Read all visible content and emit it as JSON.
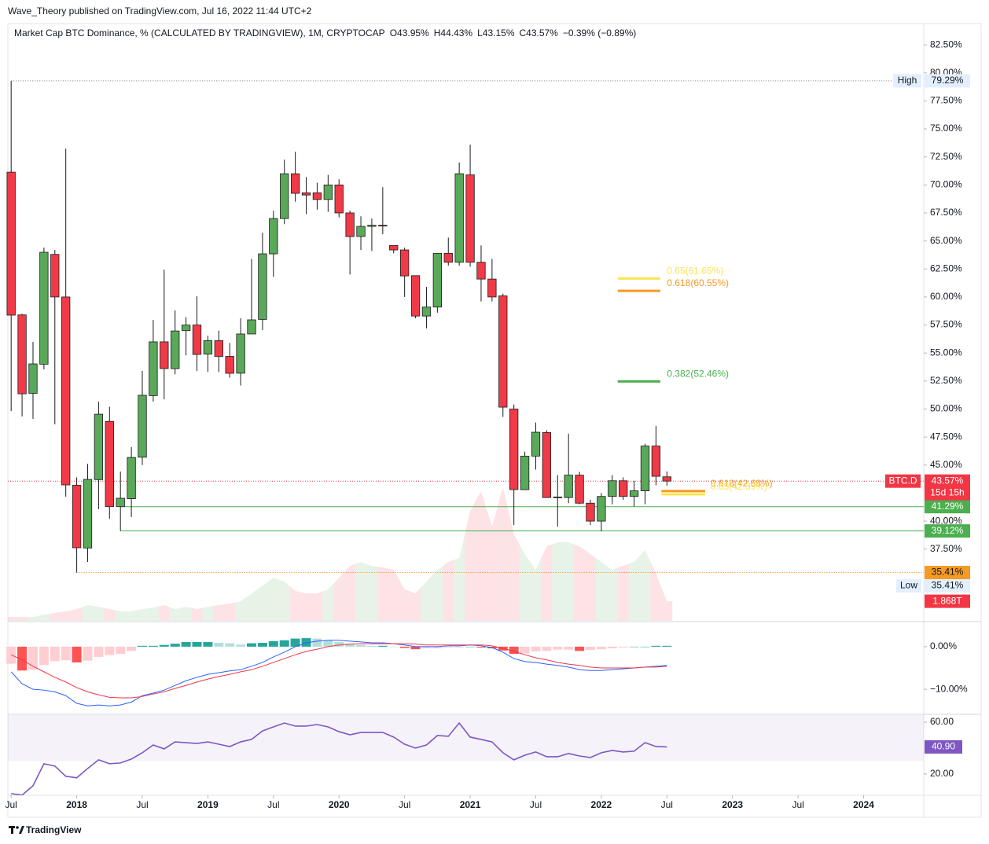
{
  "header": {
    "publisher": "Wave_Theory published on TradingView.com, Jul 16, 2022 11:44 UTC+2",
    "brand": "TradingView"
  },
  "chart_data": {
    "type": "candlestick",
    "title": "Market Cap BTC Dominance, % (CALCULATED BY TRADINGVIEW), 1M, CRYPTOCAP",
    "ohlc_text": [
      "O43.95%",
      "H44.43%",
      "L43.15%",
      "C43.57%",
      "−0.39% (−0.89%)"
    ],
    "open": [
      71.14,
      58.4,
      51.4,
      54.0,
      63.8,
      60.0,
      43.2,
      37.6,
      43.7,
      48.9,
      41.29,
      42.0,
      45.7,
      51.2,
      56.0,
      53.6,
      57.0,
      57.5,
      54.9,
      56.1,
      54.7,
      53.2,
      56.7,
      58.0,
      63.85,
      67.0,
      71.0,
      69.3,
      69.3,
      68.7,
      70.0,
      67.5,
      65.4,
      66.3,
      66.4,
      64.6,
      64.2,
      61.9,
      58.3,
      59.1,
      63.9,
      63.1,
      70.9,
      63.1,
      61.6,
      60.1,
      50.0,
      42.8,
      45.8,
      47.9,
      42.1,
      42.1,
      44.1,
      41.6,
      40.0,
      42.2,
      43.6,
      42.2,
      42.7,
      46.7,
      43.95
    ],
    "high": [
      79.29,
      58.5,
      55.99,
      64.4,
      64.2,
      73.24,
      43.9,
      45.1,
      50.66,
      50.2,
      44.42,
      46.6,
      53.4,
      57.96,
      62.44,
      58.8,
      58.2,
      60.06,
      56.55,
      57.0,
      55.9,
      58.1,
      63.4,
      65.74,
      67.7,
      72.26,
      72.96,
      70.7,
      70.2,
      70.9,
      70.5,
      67.7,
      67.2,
      67.0,
      69.8,
      64.6,
      64.4,
      61.9,
      60.9,
      63.9,
      65.3,
      72.0,
      73.6,
      64.6,
      63.4,
      60.3,
      50.4,
      46.2,
      48.8,
      48.1,
      44.1,
      47.8,
      44.4,
      41.9,
      42.5,
      44.1,
      43.9,
      43.6,
      46.9,
      48.5,
      44.43
    ],
    "low": [
      49.82,
      49.33,
      49.12,
      53.54,
      48.63,
      42.18,
      35.41,
      36.36,
      41.06,
      40.2,
      39.12,
      40.36,
      45.0,
      50.66,
      50.87,
      53.1,
      54.8,
      53.4,
      53.3,
      53.3,
      52.8,
      52.1,
      56.7,
      57.05,
      61.8,
      66.5,
      68.5,
      67.4,
      67.8,
      67.6,
      67.1,
      62.0,
      64.2,
      64.1,
      65.6,
      63.9,
      60.0,
      58.1,
      57.2,
      58.6,
      62.8,
      62.8,
      62.7,
      59.6,
      59.6,
      49.3,
      39.65,
      42.8,
      44.6,
      42.1,
      39.5,
      41.6,
      41.5,
      39.65,
      39.1,
      41.5,
      41.9,
      41.3,
      41.5,
      43.2,
      43.15
    ],
    "close": [
      58.38,
      51.36,
      54.03,
      63.99,
      60.0,
      43.23,
      37.62,
      43.72,
      49.54,
      41.29,
      42.04,
      45.68,
      51.23,
      56.0,
      53.61,
      56.97,
      57.5,
      54.87,
      56.1,
      54.7,
      53.19,
      56.7,
      57.96,
      63.85,
      67.0,
      71.0,
      69.25,
      69.1,
      68.7,
      70.0,
      67.5,
      65.39,
      66.3,
      66.4,
      66.35,
      64.2,
      61.88,
      58.3,
      59.1,
      63.9,
      63.1,
      71.0,
      63.1,
      61.6,
      60.0,
      50.17,
      42.81,
      45.8,
      47.93,
      42.1,
      42.15,
      44.1,
      41.6,
      40.0,
      42.2,
      43.6,
      42.2,
      42.7,
      46.7,
      44.0,
      43.57
    ],
    "up_color": "#5aa85a",
    "down_color": "#f03a47",
    "xlim": [
      -0.3,
      83.5
    ],
    "xticks": [
      {
        "value": 0,
        "label": "Jul"
      },
      {
        "value": 6,
        "label": "2018"
      },
      {
        "value": 12,
        "label": "Jul"
      },
      {
        "value": 18,
        "label": "2019"
      },
      {
        "value": 24,
        "label": "Jul"
      },
      {
        "value": 30,
        "label": "2020"
      },
      {
        "value": 36,
        "label": "Jul"
      },
      {
        "value": 42,
        "label": "2021"
      },
      {
        "value": 48,
        "label": "Jul"
      },
      {
        "value": 54,
        "label": "2022"
      },
      {
        "value": 60,
        "label": "Jul"
      },
      {
        "value": 66,
        "label": "2023"
      },
      {
        "value": 72,
        "label": "Jul"
      },
      {
        "value": 78,
        "label": "2024"
      }
    ],
    "ylim": [
      31.1,
      84.4
    ],
    "yticks": [
      {
        "value": 82.5,
        "label": "82.50%"
      },
      {
        "value": 80,
        "label": "80.00%"
      },
      {
        "value": 77.5,
        "label": "77.50%"
      },
      {
        "value": 75,
        "label": "75.00%"
      },
      {
        "value": 72.5,
        "label": "72.50%"
      },
      {
        "value": 70,
        "label": "70.00%"
      },
      {
        "value": 67.5,
        "label": "67.50%"
      },
      {
        "value": 65,
        "label": "65.00%"
      },
      {
        "value": 62.5,
        "label": "62.50%"
      },
      {
        "value": 60,
        "label": "60.00%"
      },
      {
        "value": 57.5,
        "label": "57.50%"
      },
      {
        "value": 55,
        "label": "55.00%"
      },
      {
        "value": 52.5,
        "label": "52.50%"
      },
      {
        "value": 50,
        "label": "50.00%"
      },
      {
        "value": 47.5,
        "label": "47.50%"
      },
      {
        "value": 45,
        "label": "45.00%"
      },
      {
        "value": 40,
        "label": "40.00%"
      },
      {
        "value": 37.5,
        "label": "37.50%"
      }
    ],
    "levels": [
      {
        "value": 79.29,
        "label": "79.29%",
        "tag": "High",
        "color": "#787b86",
        "dotted": true,
        "tag_bg": "#e3effd",
        "tag_fg": "#131722"
      },
      {
        "value": 41.29,
        "label": "41.29%",
        "color": "#4caf50",
        "dotted": false,
        "tag_bg": "#4caf50",
        "tag_fg": "#ffffff"
      },
      {
        "value": 39.12,
        "label": "39.12%",
        "color": "#4caf50",
        "dotted": false,
        "tag_bg": "#4caf50",
        "tag_fg": "#ffffff"
      },
      {
        "value": 35.41,
        "label": "35.41%",
        "color": "#f57c00",
        "dotted": true,
        "tag_bg": "#f59a23",
        "tag_fg": "#131722"
      }
    ],
    "low_tag": {
      "tag": "Low",
      "value": 35.41,
      "label": "35.41%",
      "tag_bg": "#e3effd"
    },
    "last": {
      "symbol": "BTC.D",
      "value": 43.57,
      "label": "43.57%",
      "countdown": "15d 15h",
      "color": "#f23645"
    },
    "fib": [
      {
        "value": 61.65,
        "label": "0.65(61.65%)",
        "color": "#fbe44f"
      },
      {
        "value": 60.55,
        "label": "0.618(60.55%)",
        "color": "#f59a23"
      },
      {
        "value": 52.46,
        "label": "0.382(52.46%)",
        "color": "#4caf50"
      },
      {
        "value": 42.68,
        "label": "0.618(42.68%)",
        "color": "#f59a23"
      },
      {
        "value": 42.39,
        "label": "0.65(42.39%)",
        "color": "#fbe44f"
      }
    ],
    "volume": {
      "values": [
        0.37,
        0.37,
        0.37,
        0.6,
        0.75,
        0.9,
        1.12,
        1.5,
        1.35,
        1.12,
        0.9,
        0.9,
        1.12,
        1.27,
        1.5,
        1.12,
        1.35,
        1.12,
        1.35,
        1.5,
        1.65,
        1.87,
        2.62,
        3.37,
        4.12,
        3.75,
        2.85,
        2.62,
        2.62,
        3.0,
        4.12,
        5.25,
        5.62,
        5.25,
        5.1,
        4.87,
        3.0,
        2.62,
        3.75,
        4.87,
        5.62,
        6.0,
        10.5,
        12.37,
        9.0,
        12.75,
        8.25,
        6.37,
        4.87,
        7.12,
        7.5,
        7.5,
        7.12,
        6.37,
        5.62,
        4.87,
        5.25,
        5.62,
        6.75,
        4.5,
        1.868
      ],
      "last_label": "1.868T",
      "tag_bg": "#f23645"
    },
    "macd": {
      "macd": [
        -5.9,
        -8.7,
        -10.0,
        -10.2,
        -10.6,
        -11.5,
        -13.3,
        -13.9,
        -13.7,
        -13.9,
        -13.7,
        -13.0,
        -11.5,
        -10.9,
        -10.2,
        -9.1,
        -8.0,
        -7.2,
        -6.5,
        -6.1,
        -5.7,
        -5.4,
        -4.6,
        -3.7,
        -2.4,
        -1.3,
        0.0,
        0.9,
        1.3,
        1.5,
        1.5,
        1.3,
        1.1,
        0.9,
        0.9,
        0.7,
        0.4,
        0.0,
        0.0,
        0.0,
        0.2,
        0.2,
        0.4,
        0.2,
        -0.2,
        -1.3,
        -2.8,
        -3.5,
        -3.7,
        -4.1,
        -4.4,
        -4.8,
        -5.4,
        -5.6,
        -5.6,
        -5.4,
        -5.2,
        -5.0,
        -4.8,
        -4.6,
        -4.4
      ],
      "signal": [
        -1.9,
        -3.1,
        -4.6,
        -5.9,
        -7.2,
        -8.3,
        -9.6,
        -10.6,
        -11.3,
        -11.9,
        -12.0,
        -12.0,
        -11.7,
        -11.1,
        -10.6,
        -9.8,
        -9.1,
        -8.3,
        -7.6,
        -7.0,
        -6.5,
        -5.9,
        -5.4,
        -4.6,
        -3.7,
        -2.8,
        -1.9,
        -1.1,
        -0.6,
        0.0,
        0.4,
        0.6,
        0.7,
        0.7,
        0.7,
        0.7,
        0.7,
        0.6,
        0.4,
        0.4,
        0.4,
        0.4,
        0.4,
        0.4,
        0.2,
        -0.4,
        -1.1,
        -1.9,
        -2.6,
        -3.1,
        -3.7,
        -4.1,
        -4.4,
        -4.8,
        -5.0,
        -5.0,
        -5.0,
        -5.0,
        -4.8,
        -4.8,
        -4.6
      ],
      "histogram": [
        -4.0,
        -5.6,
        -5.4,
        -4.3,
        -3.4,
        -3.2,
        -3.7,
        -3.3,
        -2.4,
        -2.0,
        -1.7,
        -1.0,
        0.2,
        0.2,
        0.4,
        0.7,
        1.1,
        1.1,
        1.1,
        0.9,
        0.8,
        0.5,
        0.8,
        0.9,
        1.3,
        1.5,
        1.9,
        2.0,
        1.9,
        1.5,
        1.1,
        0.7,
        0.4,
        0.2,
        0.2,
        0.0,
        -0.3,
        -0.6,
        -0.4,
        -0.4,
        -0.2,
        -0.2,
        0.0,
        -0.2,
        -0.4,
        -0.9,
        -1.7,
        -1.6,
        -1.1,
        -1.0,
        -0.7,
        -0.7,
        -1.0,
        -0.8,
        -0.6,
        -0.4,
        -0.2,
        0.0,
        0.0,
        0.2,
        0.2
      ],
      "macd_color": "#2962ff",
      "signal_color": "#f23645",
      "hist_colors": [
        "#26a69a",
        "#b2dfdb",
        "#ffcdd2",
        "#ff5252"
      ],
      "ylim": [
        -15.7,
        5.7
      ],
      "yticks": [
        {
          "value": 0,
          "label": "0.00%"
        },
        {
          "value": -10,
          "label": "−10.00%"
        }
      ]
    },
    "rsi": {
      "values": [
        4.8,
        3.6,
        10.9,
        27.9,
        26.1,
        18.2,
        17.0,
        24.2,
        30.9,
        27.9,
        28.5,
        31.5,
        36.4,
        42.4,
        39.4,
        44.8,
        44.2,
        43.6,
        44.8,
        43.0,
        41.2,
        44.8,
        46.7,
        53.3,
        56.4,
        59.4,
        57.0,
        57.0,
        58.2,
        56.4,
        52.7,
        50.3,
        52.1,
        52.1,
        52.1,
        48.5,
        43.0,
        40.0,
        42.4,
        49.7,
        49.1,
        59.4,
        48.5,
        46.7,
        44.8,
        36.4,
        30.9,
        34.5,
        37.0,
        33.3,
        33.3,
        35.8,
        33.9,
        32.7,
        36.4,
        38.2,
        37.0,
        37.6,
        44.2,
        41.2,
        40.9
      ],
      "last_label": "40.90",
      "color": "#7e57c2",
      "band": [
        30,
        70
      ],
      "ylim": [
        3.5,
        65.5
      ],
      "yticks": [
        {
          "value": 60,
          "label": "60.00"
        },
        {
          "value": 20,
          "label": "20.00"
        }
      ]
    }
  }
}
